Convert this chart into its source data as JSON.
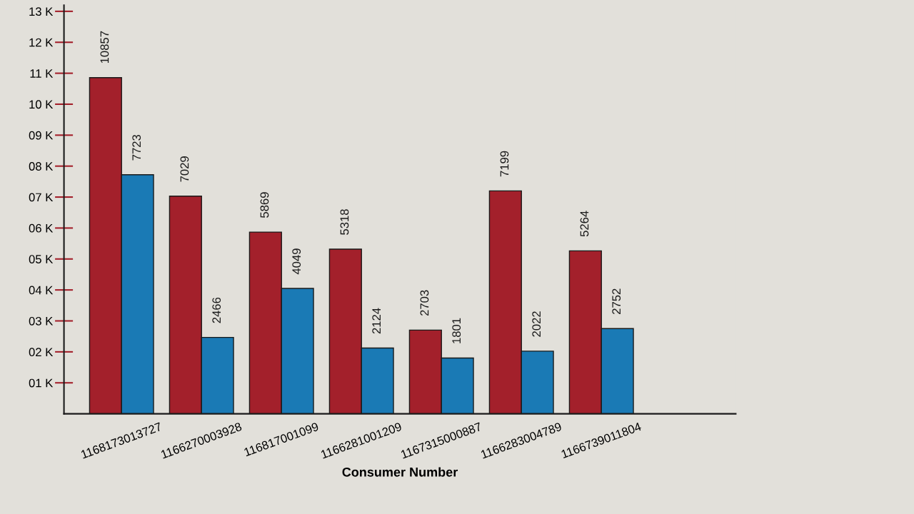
{
  "chart_data": {
    "type": "bar",
    "categories": [
      "1168173013727",
      "1166270003928",
      "116817001099",
      "1166281001209",
      "1167315000887",
      "1166283004789",
      "1166739011804"
    ],
    "series": [
      {
        "color": "#a3202b",
        "values": [
          10857,
          7029,
          5869,
          5318,
          2703,
          7199,
          5264
        ]
      },
      {
        "color": "#1a7ab5",
        "values": [
          7723,
          2466,
          4049,
          2124,
          1801,
          2022,
          2752
        ]
      }
    ],
    "xlabel": "Consumer Number",
    "ylim": [
      0,
      13200
    ],
    "yticks": [
      {
        "value": 1000,
        "label": "01 K"
      },
      {
        "value": 2000,
        "label": "02 K"
      },
      {
        "value": 3000,
        "label": "03 K"
      },
      {
        "value": 4000,
        "label": "04 K"
      },
      {
        "value": 5000,
        "label": "05 K"
      },
      {
        "value": 6000,
        "label": "06 K"
      },
      {
        "value": 7000,
        "label": "07 K"
      },
      {
        "value": 8000,
        "label": "08 K"
      },
      {
        "value": 9000,
        "label": "09 K"
      },
      {
        "value": 10000,
        "label": "10 K"
      },
      {
        "value": 11000,
        "label": "11 K"
      },
      {
        "value": 12000,
        "label": "12 K"
      },
      {
        "value": 13000,
        "label": "13 K"
      }
    ],
    "data_labels": true,
    "grid": false,
    "legend": false
  }
}
